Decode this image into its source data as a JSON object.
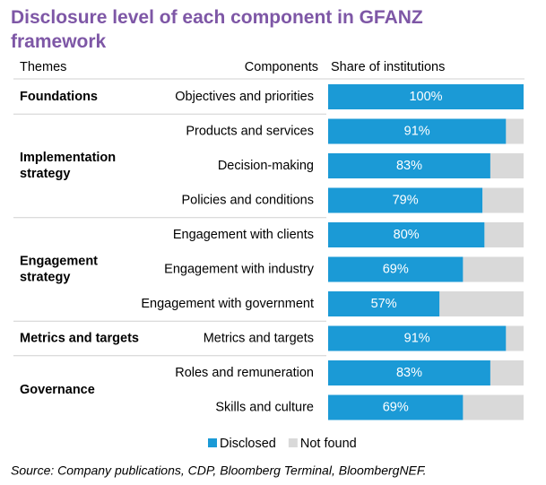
{
  "chart_data": {
    "type": "stacked-bar-horizontal",
    "title": "Disclosure level of each component in GFANZ framework",
    "column_headers": [
      "Themes",
      "Components",
      "Share of institutions"
    ],
    "groups": [
      {
        "name": "Foundations",
        "count": 1
      },
      {
        "name": "Implementation strategy",
        "count": 3
      },
      {
        "name": "Engagement strategy",
        "count": 3
      },
      {
        "name": "Metrics and targets",
        "count": 1
      },
      {
        "name": "Governance",
        "count": 2
      }
    ],
    "categories": [
      "Objectives and priorities",
      "Products and services",
      "Decision-making",
      "Policies and conditions",
      "Engagement with clients",
      "Engagement with industry",
      "Engagement with government",
      "Metrics and targets",
      "Roles and remuneration",
      "Skills and culture"
    ],
    "xlim": [
      0,
      100
    ],
    "series": [
      {
        "name": "Disclosed",
        "color": "#1b9ad6",
        "values": [
          100,
          91,
          83,
          79,
          80,
          69,
          57,
          91,
          83,
          69
        ],
        "value_labels": [
          "100%",
          "91%",
          "83%",
          "79%",
          "80%",
          "69%",
          "57%",
          "91%",
          "83%",
          "69%"
        ]
      },
      {
        "name": "Not found",
        "color": "#d9d9d9",
        "values": [
          0,
          9,
          17,
          21,
          20,
          31,
          43,
          9,
          17,
          31
        ]
      }
    ],
    "source": "Source: Company publications, CDP, Bloomberg Terminal, BloombergNEF."
  }
}
